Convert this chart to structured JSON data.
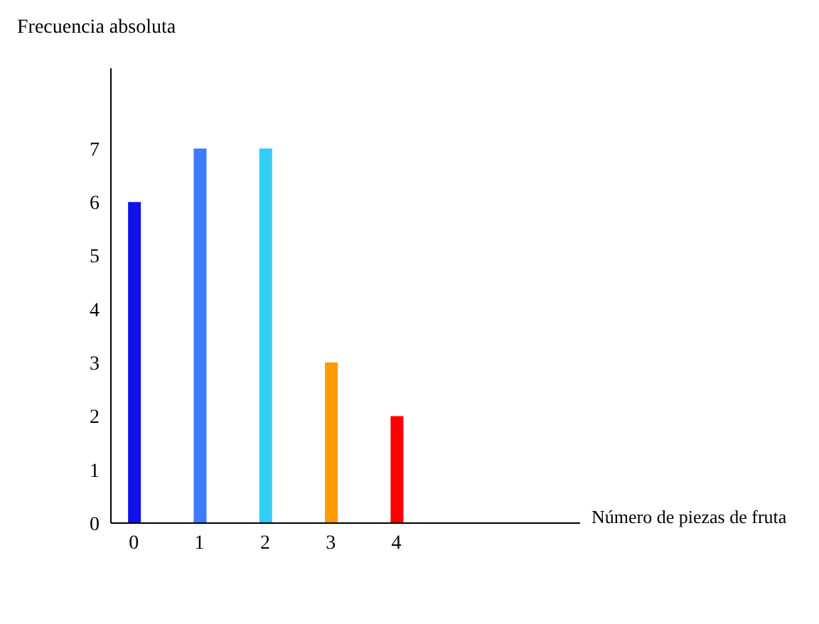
{
  "chart_data": {
    "type": "bar",
    "xlabel": "Número de piezas de fruta",
    "ylabel": "Frecuencia absoluta",
    "x": [
      0,
      1,
      2,
      3,
      4
    ],
    "values": [
      6,
      7,
      7,
      3,
      2
    ],
    "colors": [
      "#1010e8",
      "#3d7bff",
      "#33ccf5",
      "#ff9900",
      "#ff0000"
    ],
    "xlim": [
      -0.35,
      6.8
    ],
    "xticks": [
      0,
      1,
      2,
      3,
      4
    ],
    "ylim": [
      0,
      8.5
    ],
    "yticks": [
      0,
      1,
      2,
      3,
      4,
      5,
      6,
      7
    ],
    "grid": false
  }
}
